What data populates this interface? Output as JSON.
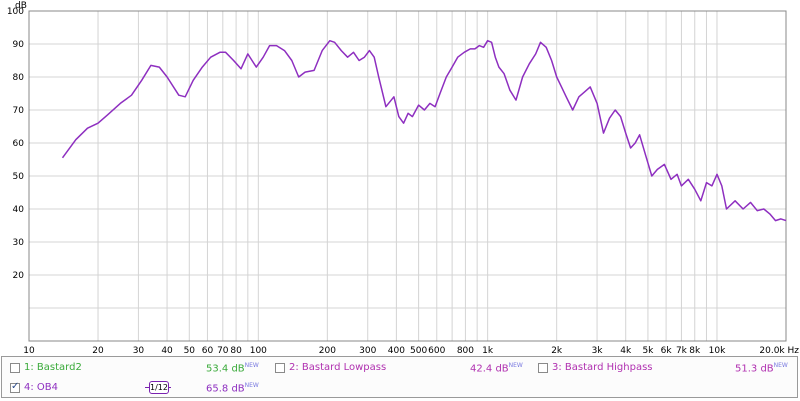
{
  "chart_data": {
    "type": "line",
    "xscale": "log",
    "xlim": [
      10,
      20000
    ],
    "ylim": [
      0,
      100
    ],
    "ylabel": "dB",
    "xunit": "Hz",
    "grid": true,
    "x_ticks": [
      {
        "v": 10,
        "label": "10"
      },
      {
        "v": 20,
        "label": "20"
      },
      {
        "v": 30,
        "label": "30"
      },
      {
        "v": 40,
        "label": "40"
      },
      {
        "v": 50,
        "label": "50"
      },
      {
        "v": 60,
        "label": "60"
      },
      {
        "v": 70,
        "label": "70"
      },
      {
        "v": 80,
        "label": "80"
      },
      {
        "v": 100,
        "label": "100"
      },
      {
        "v": 200,
        "label": "200"
      },
      {
        "v": 300,
        "label": "300"
      },
      {
        "v": 400,
        "label": "400"
      },
      {
        "v": 500,
        "label": "500"
      },
      {
        "v": 600,
        "label": "600"
      },
      {
        "v": 800,
        "label": "800"
      },
      {
        "v": 1000,
        "label": "1k"
      },
      {
        "v": 2000,
        "label": "2k"
      },
      {
        "v": 3000,
        "label": "3k"
      },
      {
        "v": 4000,
        "label": "4k"
      },
      {
        "v": 5000,
        "label": "5k"
      },
      {
        "v": 6000,
        "label": "6k"
      },
      {
        "v": 7000,
        "label": "7k"
      },
      {
        "v": 8000,
        "label": "8k"
      },
      {
        "v": 10000,
        "label": "10k"
      },
      {
        "v": 20000,
        "label": "20.0k Hz"
      }
    ],
    "x_minor": [
      90,
      700,
      900,
      9000
    ],
    "y_ticks": [
      20,
      30,
      40,
      50,
      60,
      70,
      80,
      90,
      100
    ],
    "series": [
      {
        "name": "4: OB4",
        "color": "#8e2fc0",
        "x": [
          14,
          16,
          18,
          20,
          22,
          25,
          28,
          31,
          34,
          37,
          40,
          45,
          48,
          52,
          57,
          62,
          68,
          72,
          78,
          84,
          90,
          98,
          105,
          112,
          120,
          130,
          140,
          150,
          160,
          175,
          190,
          205,
          215,
          230,
          245,
          260,
          275,
          290,
          305,
          320,
          335,
          360,
          390,
          410,
          430,
          450,
          470,
          500,
          530,
          560,
          590,
          620,
          660,
          700,
          740,
          790,
          840,
          880,
          920,
          960,
          1000,
          1040,
          1080,
          1120,
          1180,
          1250,
          1330,
          1420,
          1520,
          1620,
          1700,
          1800,
          1900,
          2000,
          2100,
          2200,
          2350,
          2500,
          2650,
          2800,
          3000,
          3200,
          3400,
          3600,
          3800,
          4000,
          4200,
          4400,
          4600,
          4900,
          5200,
          5500,
          5900,
          6300,
          6700,
          7000,
          7500,
          8000,
          8500,
          9000,
          9500,
          10000,
          10500,
          11000,
          12000,
          13000,
          14000,
          15000,
          16000,
          17000,
          18000,
          19000,
          20000
        ],
        "y": [
          55.5,
          61,
          64.5,
          66,
          68.5,
          72,
          74.5,
          79,
          83.5,
          83,
          80,
          74.5,
          74,
          79,
          83,
          86,
          87.5,
          87.5,
          85,
          82.5,
          87,
          83,
          86,
          89.5,
          89.5,
          88,
          85,
          80,
          81.5,
          82,
          88,
          91,
          90.5,
          88,
          86,
          87.5,
          85,
          86,
          88,
          86,
          80,
          71,
          74,
          68,
          66,
          69,
          68,
          71.5,
          70,
          72,
          71,
          75,
          80,
          83,
          86,
          87.5,
          88.5,
          88.5,
          89.5,
          89,
          91,
          90.5,
          86,
          83,
          81,
          76,
          73,
          80,
          84,
          87,
          90.5,
          89,
          85,
          80,
          77,
          74,
          70,
          74,
          75.5,
          77,
          72,
          63,
          67.5,
          70,
          68,
          63,
          58.5,
          60,
          62.5,
          56,
          50,
          52,
          53.5,
          49,
          50.5,
          47,
          49,
          46,
          42.5,
          48,
          47,
          50.5,
          47,
          40,
          42.5,
          40,
          42,
          39.5,
          40,
          38.5,
          36.5,
          37,
          36.5
        ]
      }
    ]
  },
  "legend": {
    "items": [
      {
        "label": "1: Bastard2",
        "value": "53.4 dB",
        "sup": "NEW",
        "color": "#3aaa3a",
        "checked": false
      },
      {
        "label": "2: Bastard Lowpass",
        "value": "42.4 dB",
        "sup": "NEW",
        "color": "#b030b0",
        "checked": false
      },
      {
        "label": "3: Bastard Highpass",
        "value": "51.3 dB",
        "sup": "NEW",
        "color": "#b030b0",
        "checked": false
      },
      {
        "label": "4: OB4",
        "value": "65.8 dB",
        "sup": "NEW",
        "color": "#8e2fc0",
        "checked": true
      }
    ],
    "smoothing": {
      "num": "1",
      "den": "12"
    }
  },
  "colors": {
    "grid": "#d4d4d4",
    "axis": "#888888",
    "accent": "#8e2fc0"
  }
}
